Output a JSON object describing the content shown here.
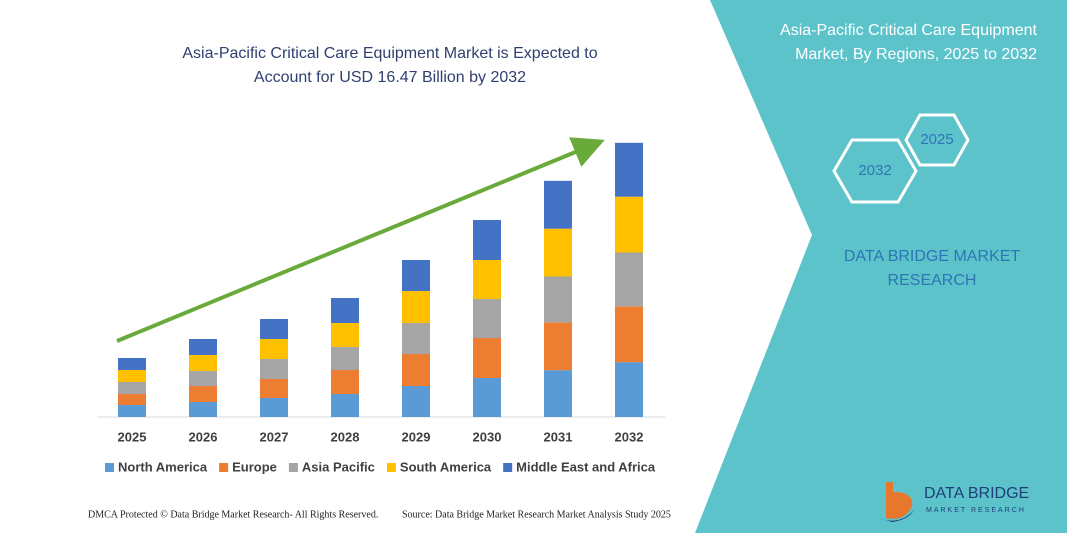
{
  "chart_data": {
    "type": "stacked_bar",
    "title": "Asia-Pacific Critical Care Equipment Market is Expected to Account for USD 16.47 Billion by 2032",
    "categories": [
      "2025",
      "2026",
      "2027",
      "2028",
      "2029",
      "2030",
      "2031",
      "2032"
    ],
    "series": [
      {
        "name": "North America",
        "color": "#5b9bd5",
        "values": [
          0.72,
          0.9,
          1.14,
          1.38,
          1.86,
          2.34,
          2.81,
          3.29
        ]
      },
      {
        "name": "Europe",
        "color": "#ed7d31",
        "values": [
          0.66,
          0.96,
          1.14,
          1.44,
          1.92,
          2.4,
          2.87,
          3.35
        ]
      },
      {
        "name": "Asia Pacific",
        "color": "#a5a5a5",
        "values": [
          0.72,
          0.9,
          1.2,
          1.38,
          1.86,
          2.34,
          2.75,
          3.23
        ]
      },
      {
        "name": "South America",
        "color": "#ffc000",
        "values": [
          0.72,
          0.96,
          1.2,
          1.44,
          1.92,
          2.34,
          2.87,
          3.35
        ]
      },
      {
        "name": "Middle East and Africa",
        "color": "#4472c4",
        "values": [
          0.72,
          0.96,
          1.2,
          1.5,
          1.86,
          2.4,
          2.87,
          3.23
        ]
      }
    ],
    "ylim": [
      0,
      16.5
    ]
  },
  "panel": {
    "title": [
      "Asia-Pacific Critical Care Equipment",
      "Market, By Regions, 2025 to 2032"
    ],
    "hexagons": [
      "2025",
      "2032"
    ],
    "brand": [
      "DATA BRIDGE MARKET",
      "RESEARCH"
    ]
  },
  "logo": {
    "name": "DATA BRIDGE",
    "tagline": "MARKET RESEARCH"
  },
  "footer": {
    "left": "DMCA Protected © Data Bridge Market Research- All Rights Reserved.",
    "right": "Source: Data Bridge Market Research Market Analysis Study 2025"
  }
}
